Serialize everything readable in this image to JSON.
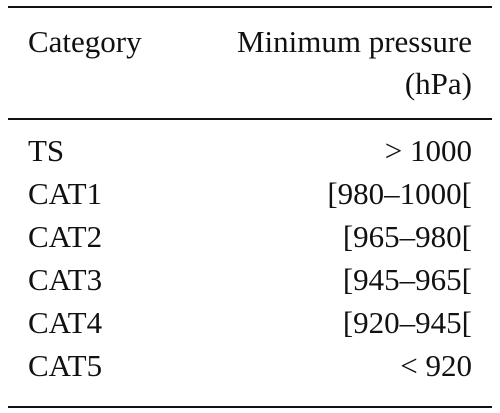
{
  "table": {
    "header": {
      "col1": "Category",
      "col2_line1": "Minimum pressure",
      "col2_line2": "(hPa)"
    },
    "rows": [
      {
        "category": "TS",
        "pressure": "> 1000"
      },
      {
        "category": "CAT1",
        "pressure": "[980–1000["
      },
      {
        "category": "CAT2",
        "pressure": "[965–980["
      },
      {
        "category": "CAT3",
        "pressure": "[945–965["
      },
      {
        "category": "CAT4",
        "pressure": "[920–945["
      },
      {
        "category": "CAT5",
        "pressure": "< 920"
      }
    ]
  }
}
